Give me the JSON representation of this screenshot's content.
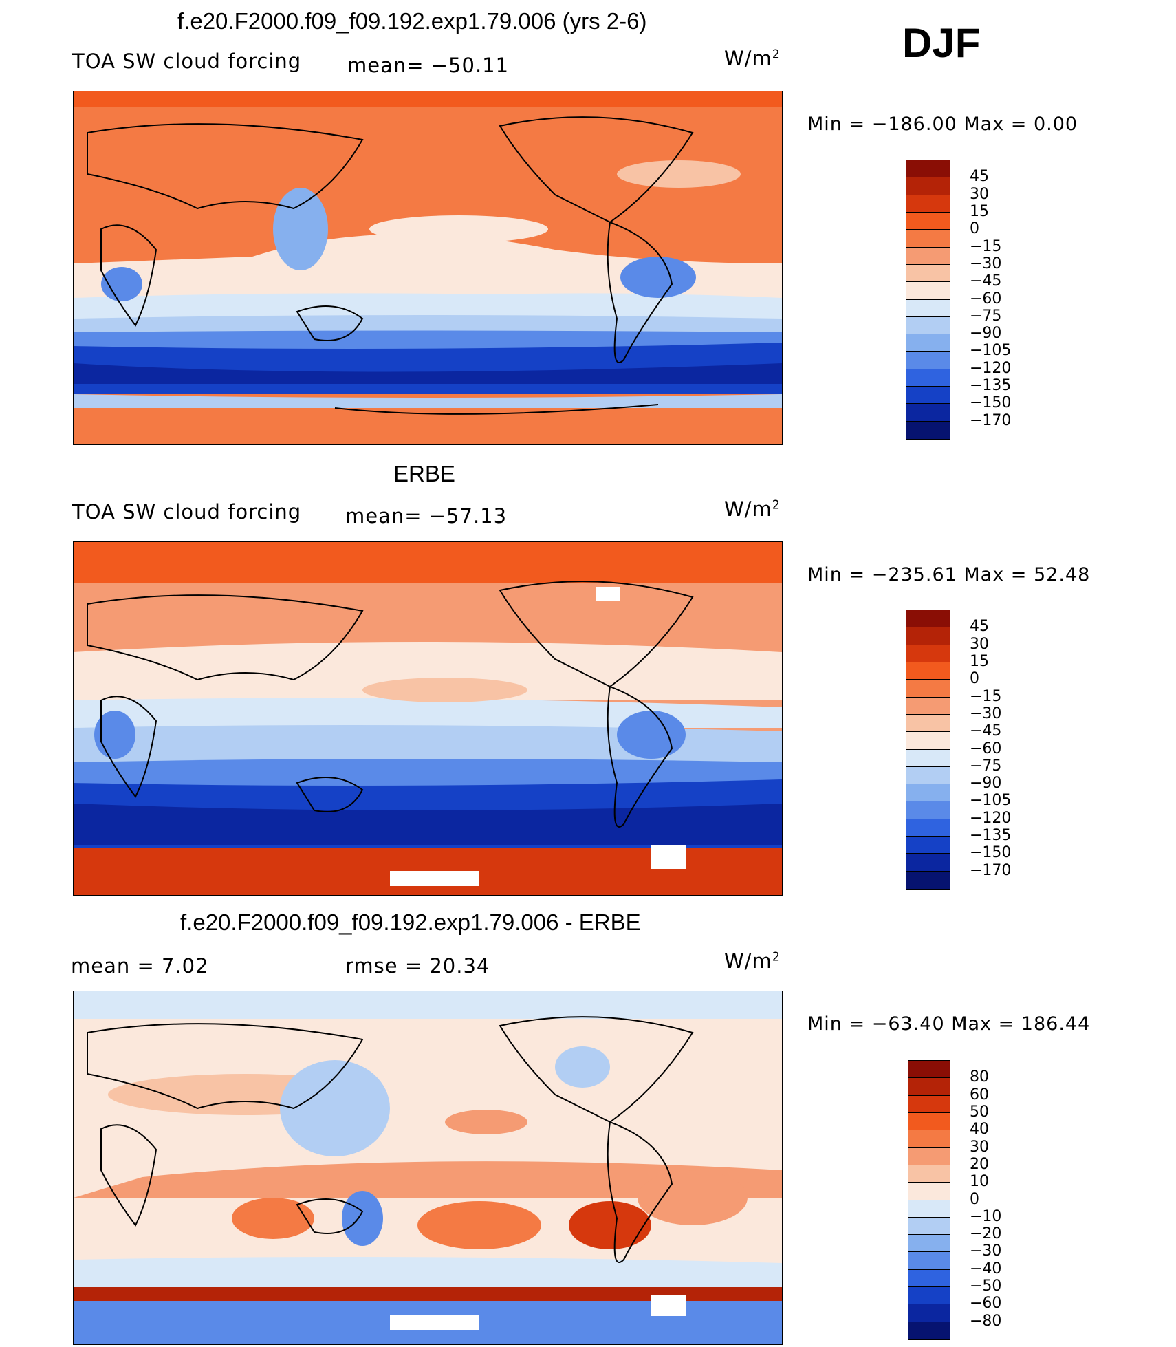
{
  "season": "DJF",
  "units_label": "W/m",
  "units_sup": "2",
  "panels": [
    {
      "title": "f.e20.F2000.f09_f09.192.exp1.79.006 (yrs 2-6)",
      "variable": "TOA SW cloud forcing",
      "left_stat": "TOA SW cloud forcing",
      "mean": "mean= −50.11",
      "minmax": "Min  =  −186.00  Max  =     0.00",
      "levels": [
        "45",
        "30",
        "15",
        "0",
        "−15",
        "−30",
        "−45",
        "−60",
        "−75",
        "−90",
        "−105",
        "−120",
        "−135",
        "−150",
        "−170"
      ],
      "colors": [
        "#8a0e05",
        "#b42307",
        "#d6380d",
        "#f25a1e",
        "#f47a44",
        "#f59b73",
        "#f8c3a5",
        "#fbe8dc",
        "#d8e8f8",
        "#b2cef3",
        "#86b0ee",
        "#5a8ae8",
        "#2f63e0",
        "#1541c6",
        "#0b26a0",
        "#061370"
      ]
    },
    {
      "title": "ERBE",
      "variable": "TOA SW cloud forcing",
      "left_stat": "TOA SW cloud forcing",
      "mean": "mean= −57.13",
      "minmax": "Min  =  −235.61  Max  =   52.48",
      "levels": [
        "45",
        "30",
        "15",
        "0",
        "−15",
        "−30",
        "−45",
        "−60",
        "−75",
        "−90",
        "−105",
        "−120",
        "−135",
        "−150",
        "−170"
      ],
      "colors": [
        "#8a0e05",
        "#b42307",
        "#d6380d",
        "#f25a1e",
        "#f47a44",
        "#f59b73",
        "#f8c3a5",
        "#fbe8dc",
        "#d8e8f8",
        "#b2cef3",
        "#86b0ee",
        "#5a8ae8",
        "#2f63e0",
        "#1541c6",
        "#0b26a0",
        "#061370"
      ]
    },
    {
      "title": "f.e20.F2000.f09_f09.192.exp1.79.006 - ERBE",
      "left_stat": "mean  =     7.02",
      "mean": "rmse  =   20.34",
      "minmax": "Min  =  −63.40  Max  =  186.44",
      "levels": [
        "80",
        "60",
        "50",
        "40",
        "30",
        "20",
        "10",
        "0",
        "−10",
        "−20",
        "−30",
        "−40",
        "−50",
        "−60",
        "−80"
      ],
      "colors": [
        "#8a0e05",
        "#b42307",
        "#d6380d",
        "#f25a1e",
        "#f47a44",
        "#f59b73",
        "#f8c3a5",
        "#fbe8dc",
        "#d8e8f8",
        "#b2cef3",
        "#86b0ee",
        "#5a8ae8",
        "#2f63e0",
        "#1541c6",
        "#0b26a0",
        "#061370"
      ]
    }
  ]
}
